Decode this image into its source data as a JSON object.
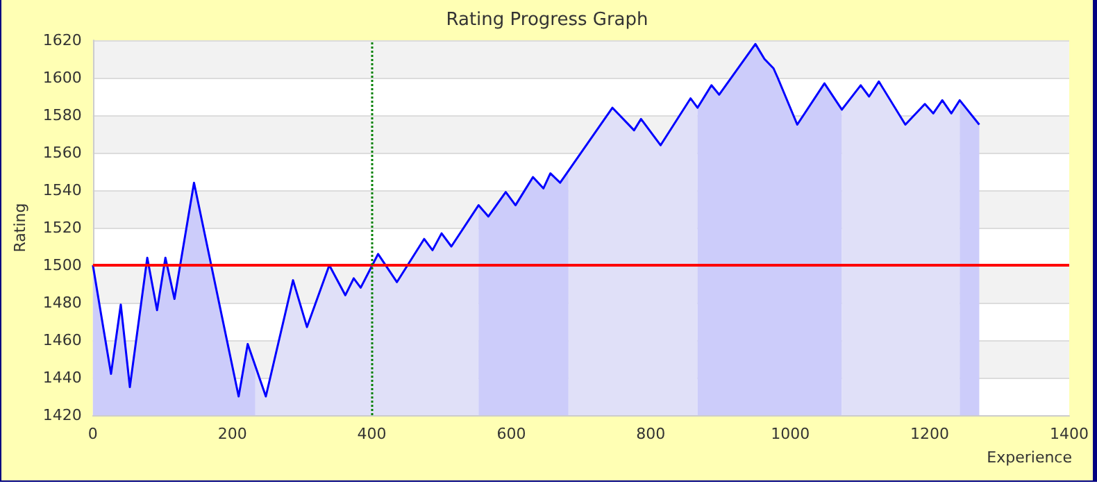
{
  "chart_data": {
    "type": "area",
    "title": "Rating Progress Graph",
    "xlabel": "Experience",
    "ylabel": "Rating",
    "series": [
      {
        "color": "#ccccfa",
        "x": [
          0,
          26,
          40,
          53,
          78,
          92,
          104,
          117,
          145,
          209,
          222,
          233
        ],
        "values": [
          1500,
          1442,
          1479,
          1435,
          1504,
          1476,
          1504,
          1482,
          1544,
          1430,
          1458,
          1446
        ]
      },
      {
        "color": "#e0e0f8",
        "x": [
          233,
          248,
          287,
          307,
          339,
          362,
          374,
          384,
          409,
          436,
          475,
          487,
          500,
          514,
          553
        ],
        "values": [
          1446,
          1430,
          1492,
          1467,
          1500,
          1484,
          1493,
          1488,
          1506,
          1491,
          1514,
          1508,
          1517,
          1510,
          1532
        ]
      },
      {
        "color": "#ccccfa",
        "x": [
          553,
          567,
          592,
          606,
          631,
          646,
          656,
          670,
          682
        ],
        "values": [
          1532,
          1526,
          1539,
          1532,
          1547,
          1541,
          1549,
          1544,
          1550
        ]
      },
      {
        "color": "#e0e0f8",
        "x": [
          682,
          745,
          776,
          786,
          814,
          857,
          867
        ],
        "values": [
          1550,
          1584,
          1572,
          1578,
          1564,
          1589,
          1584
        ]
      },
      {
        "color": "#ccccfa",
        "x": [
          867,
          887,
          898,
          950,
          963,
          976,
          982,
          1010,
          1049,
          1074
        ],
        "values": [
          1584,
          1596,
          1591,
          1618,
          1610,
          1605,
          1600,
          1575,
          1597,
          1583
        ]
      },
      {
        "color": "#e0e0f8",
        "x": [
          1074,
          1101,
          1113,
          1127,
          1165,
          1193,
          1205,
          1218,
          1231,
          1243
        ],
        "values": [
          1583,
          1596,
          1590,
          1598,
          1575,
          1586,
          1581,
          1588,
          1581,
          1588
        ]
      },
      {
        "color": "#ccccfa",
        "x": [
          1243,
          1271
        ],
        "values": [
          1588,
          1575
        ]
      },
      {
        "type": "line",
        "color": "#0000ff",
        "x": [
          0,
          26,
          40,
          53,
          78,
          92,
          104,
          117,
          145,
          209,
          222,
          248,
          287,
          307,
          339,
          362,
          374,
          384,
          409,
          436,
          475,
          487,
          500,
          514,
          553,
          567,
          592,
          606,
          631,
          646,
          656,
          670,
          745,
          776,
          786,
          814,
          857,
          867,
          887,
          898,
          950,
          963,
          976,
          982,
          1010,
          1049,
          1074,
          1101,
          1113,
          1127,
          1165,
          1193,
          1205,
          1218,
          1231,
          1243,
          1271
        ],
        "values": [
          1500,
          1442,
          1479,
          1435,
          1504,
          1476,
          1504,
          1482,
          1544,
          1430,
          1458,
          1430,
          1492,
          1467,
          1500,
          1484,
          1493,
          1488,
          1506,
          1491,
          1514,
          1508,
          1517,
          1510,
          1532,
          1526,
          1539,
          1532,
          1547,
          1541,
          1549,
          1544,
          1584,
          1572,
          1578,
          1564,
          1589,
          1584,
          1596,
          1591,
          1618,
          1610,
          1605,
          1600,
          1575,
          1597,
          1583,
          1596,
          1590,
          1598,
          1575,
          1586,
          1581,
          1588,
          1581,
          1588,
          1575
        ]
      }
    ],
    "xlim": [
      0,
      1400
    ],
    "xticks": [
      0,
      200,
      400,
      600,
      800,
      1000,
      1200,
      1400
    ],
    "ylim": [
      1420,
      1620
    ],
    "yticks": [
      1420,
      1440,
      1460,
      1480,
      1500,
      1520,
      1540,
      1560,
      1580,
      1600,
      1620
    ],
    "grid": "y",
    "marker": "none",
    "line_style": "solid",
    "ref_lines": [
      {
        "axis": "y",
        "value": 1500,
        "color": "#ff0000",
        "line_style": "solid"
      },
      {
        "axis": "x",
        "value": 400,
        "color": "#008000",
        "line_style": "dotted"
      }
    ]
  }
}
